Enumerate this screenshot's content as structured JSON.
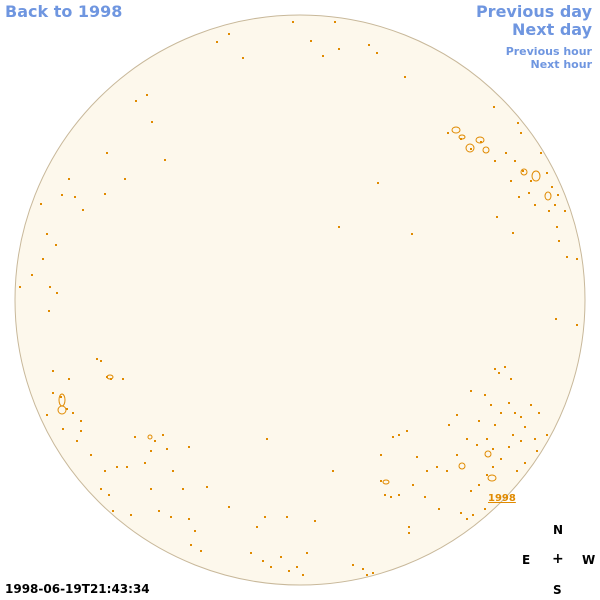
{
  "nav": {
    "back_label": "Back to 1998",
    "previous_day_label": "Previous day",
    "next_day_label": "Next day",
    "previous_hour_label": "Previous hour",
    "next_hour_label": "Next hour"
  },
  "map": {
    "disk_fill": "#fdf8ec",
    "disk_stroke": "#c8b89a",
    "feature_color": "#e08a00",
    "year_label": "1998"
  },
  "compass": {
    "north": "N",
    "east": "E",
    "center": "+",
    "west": "W",
    "south": "S"
  },
  "timestamp": "1998-06-19T21:43:34",
  "colors": {
    "link": "#6f96e0",
    "text": "#000000"
  }
}
